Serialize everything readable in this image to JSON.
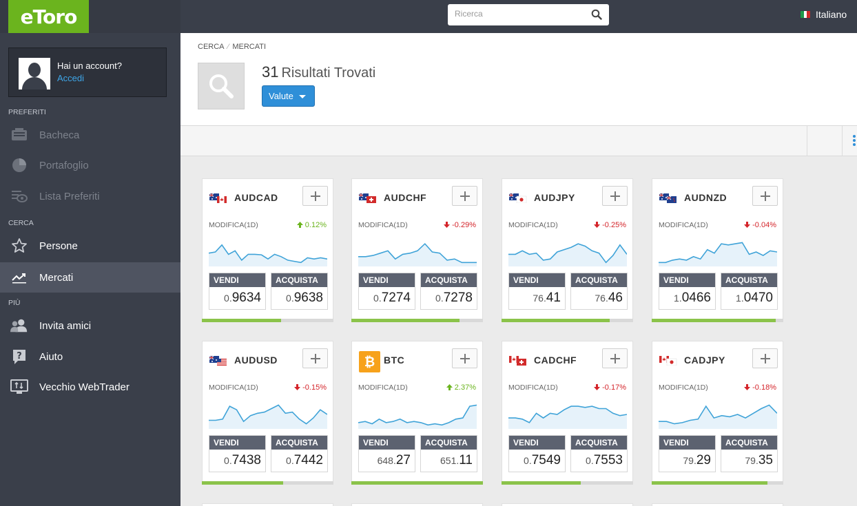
{
  "brand": {
    "logo_text": "eToro",
    "accent": "#6bb41e"
  },
  "account": {
    "question": "Hai un account?",
    "login": "Accedi"
  },
  "sidebar": {
    "sections": [
      "PREFERITI",
      "CERCA",
      "PIÙ"
    ],
    "items": [
      {
        "label": "Bacheca",
        "icon": "dashboard-icon"
      },
      {
        "label": "Portafoglio",
        "icon": "pie-chart-icon"
      },
      {
        "label": "Lista Preferiti",
        "icon": "eye-icon"
      },
      {
        "label": "Persone",
        "icon": "star-icon"
      },
      {
        "label": "Mercati",
        "icon": "trending-icon"
      },
      {
        "label": "Invita amici",
        "icon": "people-icon"
      },
      {
        "label": "Aiuto",
        "icon": "help-icon"
      },
      {
        "label": "Vecchio WebTrader",
        "icon": "monitor-icon"
      }
    ]
  },
  "search": {
    "placeholder": "Ricerca"
  },
  "language": {
    "label": "Italiano"
  },
  "breadcrumb": {
    "first": "CERCA",
    "second": "MERCATI"
  },
  "results": {
    "count": "31",
    "label": "Risultati Trovati",
    "filter_label": "Valute"
  },
  "card_labels": {
    "change": "MODIFICA(1D)",
    "sell": "VENDI",
    "buy": "ACQUISTA"
  },
  "markets": [
    {
      "symbol": "AUDCAD",
      "change": "0.12%",
      "direction": "up",
      "sell_small": "0.",
      "sell_big": "9634",
      "buy_small": "0.",
      "buy_big": "9638",
      "bar_fill": 0.6,
      "spark": [
        0.45,
        0.5,
        0.8,
        0.4,
        0.55,
        0.15,
        0.4,
        0.4,
        0.38,
        0.2,
        0.4,
        0.3,
        0.15,
        0.1,
        0.05,
        0.25,
        0.2,
        0.25,
        0.2
      ]
    },
    {
      "symbol": "AUDCHF",
      "change": "-0.29%",
      "direction": "down",
      "sell_small": "0.",
      "sell_big": "7274",
      "buy_small": "0.",
      "buy_big": "7278",
      "bar_fill": 0.82,
      "spark": [
        0.3,
        0.3,
        0.35,
        0.45,
        0.55,
        0.2,
        0.4,
        0.45,
        0.55,
        0.85,
        0.5,
        0.45,
        0.15,
        0.2,
        0.05,
        0.05,
        0.05
      ]
    },
    {
      "symbol": "AUDJPY",
      "change": "-0.25%",
      "direction": "down",
      "sell_small": "76.",
      "sell_big": "41",
      "buy_small": "76.",
      "buy_big": "46",
      "bar_fill": 0.82,
      "spark": [
        0.4,
        0.4,
        0.55,
        0.4,
        0.45,
        0.15,
        0.2,
        0.5,
        0.6,
        0.7,
        0.85,
        0.75,
        0.55,
        0.45,
        0.05,
        0.35,
        0.8,
        0.4
      ]
    },
    {
      "symbol": "AUDNZD",
      "change": "-0.04%",
      "direction": "down",
      "sell_small": "1.",
      "sell_big": "0466",
      "buy_small": "1.",
      "buy_big": "0470",
      "bar_fill": 0.94,
      "spark": [
        0.05,
        0.05,
        0.15,
        0.2,
        0.15,
        0.3,
        0.2,
        0.6,
        0.45,
        0.85,
        0.8,
        0.85,
        0.9,
        0.4,
        0.5,
        0.35,
        0.55,
        0.5
      ]
    },
    {
      "symbol": "AUDUSD",
      "change": "-0.15%",
      "direction": "down",
      "sell_small": "0.",
      "sell_big": "7438",
      "buy_small": "0.",
      "buy_big": "7442",
      "bar_fill": 0.62,
      "spark": [
        0.25,
        0.25,
        0.3,
        0.85,
        0.7,
        0.2,
        0.45,
        0.55,
        0.6,
        0.75,
        0.9,
        0.55,
        0.6,
        0.3,
        0.1,
        0.35,
        0.7,
        0.5
      ]
    },
    {
      "symbol": "BTC",
      "change": "2.37%",
      "direction": "up",
      "sell_small": "648.",
      "sell_big": "27",
      "buy_small": "651.",
      "buy_big": "11",
      "bar_fill": 1.0,
      "spark": [
        0.15,
        0.2,
        0.1,
        0.3,
        0.15,
        0.2,
        0.3,
        0.15,
        0.2,
        0.15,
        0.05,
        0.1,
        0.05,
        0.15,
        0.3,
        0.35,
        0.85,
        0.9
      ]
    },
    {
      "symbol": "CADCHF",
      "change": "-0.17%",
      "direction": "down",
      "sell_small": "0.",
      "sell_big": "7549",
      "buy_small": "0.",
      "buy_big": "7553",
      "bar_fill": 0.6,
      "spark": [
        0.35,
        0.35,
        0.3,
        0.15,
        0.55,
        0.35,
        0.55,
        0.5,
        0.7,
        0.85,
        0.85,
        0.8,
        0.85,
        0.75,
        0.75,
        0.55,
        0.45,
        0.5
      ]
    },
    {
      "symbol": "CADJPY",
      "change": "-0.18%",
      "direction": "down",
      "sell_small": "79.",
      "sell_big": "29",
      "buy_small": "79.",
      "buy_big": "35",
      "bar_fill": 0.88,
      "spark": [
        0.2,
        0.2,
        0.1,
        0.15,
        0.25,
        0.3,
        0.85,
        0.35,
        0.45,
        0.4,
        0.5,
        0.35,
        0.55,
        0.75,
        0.9,
        0.55
      ]
    }
  ]
}
